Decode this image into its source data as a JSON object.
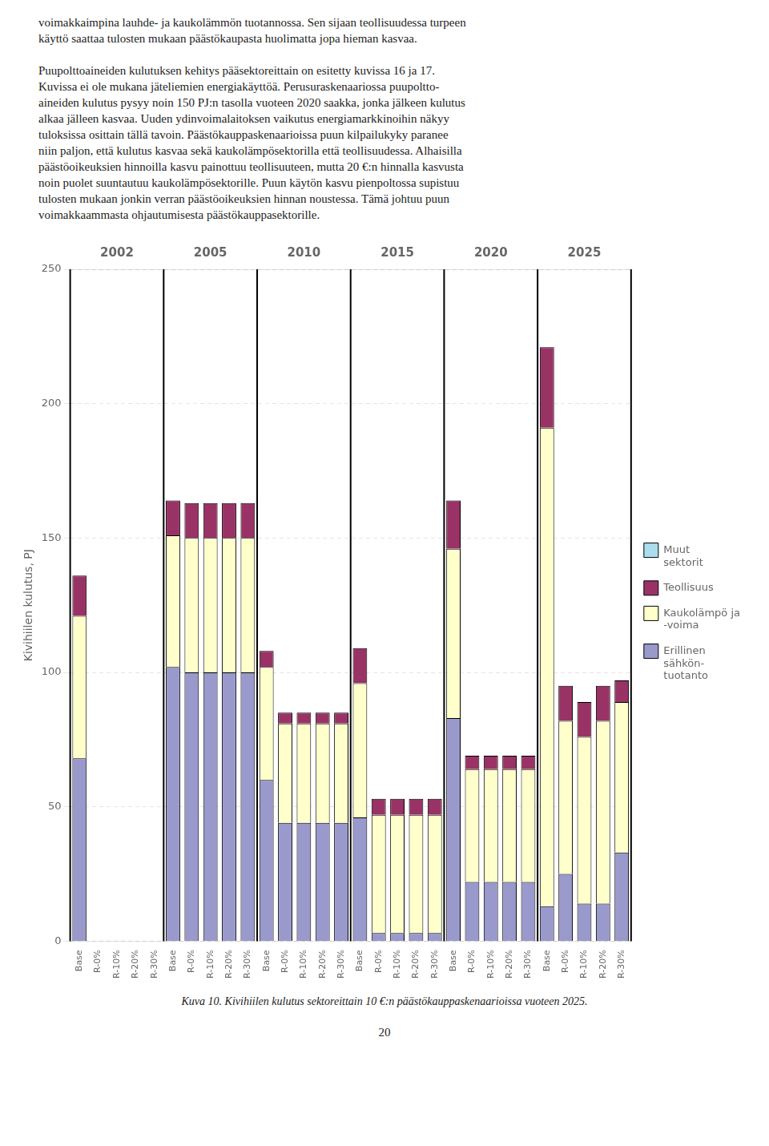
{
  "page_text_top": [
    [
      "voimakkaimpina lauhde- ja kaukolämmön tuotannossa. Sen sijaan teollisuudessa turpeen",
      "käyttö saattaa tulosten mukaan päästökaupasta huolimatta jopa hieman kasvaa."
    ],
    [
      "Puupolttoaineiden kulutuksen kehitys pääsektoreittain on esitetty kuvissa 16 ja 17.",
      "Kuvissa ei ole mukana jäteliemien energiakäyttöä. Perusuraskenaariossa puupoltto-",
      "aineiden kulutus pysyy noin 150 PJ:n tasolla vuoteen 2020 saakka, jonka jälkeen kulutus",
      "alkaa jälleen kasvaa. Uuden ydinvoimalaitoksen vaikutus energiamarkkinoihin näkyy",
      "tuloksissa osittain tällä tavoin. Päästökauppaskenaarioissa puun kilpailukyky paranee",
      "niin paljon, että kulutus kasvaa sekä kaukolämpösektorilla että teollisuudessa. Alhaisilla",
      "päästöoikeuksien hinnoilla kasvu painottuu teollisuuteen, mutta 20 €:n hinnalla kasvusta",
      "noin puolet suuntautuu kaukolämpösektorille. Puun käytön kasvu pienpoltossa supistuu",
      "tulosten mukaan jonkin verran päästöoikeuksien hinnan noustessa. Tämä johtuu puun",
      "voimakkaammasta ohjautumisesta päästökauppasektorille."
    ]
  ],
  "chart_data": {
    "type": "bar",
    "stacked": true,
    "ylabel": "Kivihiilen kulutus, PJ",
    "categories": [
      "Base",
      "R-0%",
      "R-10%",
      "R-20%",
      "R-30%",
      "Base",
      "R-0%",
      "R-10%",
      "R-20%",
      "R-30%",
      "Base",
      "R-0%",
      "R-10%",
      "R-20%",
      "R-30%",
      "Base",
      "R-0%",
      "R-10%",
      "R-20%",
      "R-30%",
      "Base",
      "R-0%",
      "R-10%",
      "R-20%",
      "R-30%",
      "Base",
      "R-0%",
      "R-10%",
      "R-20%",
      "R-30%"
    ],
    "group_labels": [
      "2002",
      "2005",
      "2010",
      "2015",
      "2020",
      "2025"
    ],
    "series": [
      {
        "name": "Erillinen\nsähkön-\ntuotanto",
        "color": "#9999CC",
        "values": [
          68,
          0,
          0,
          0,
          0,
          102,
          100,
          100,
          100,
          100,
          60,
          44,
          44,
          44,
          44,
          46,
          3,
          3,
          3,
          3,
          83,
          22,
          22,
          22,
          22,
          13,
          25,
          14,
          14,
          33
        ]
      },
      {
        "name": "Kaukolämpö ja\n-voima",
        "color": "#FFFFCC",
        "values": [
          53,
          0,
          0,
          0,
          0,
          49,
          50,
          50,
          50,
          50,
          42,
          37,
          37,
          37,
          37,
          50,
          44,
          44,
          44,
          44,
          63,
          42,
          42,
          42,
          42,
          178,
          57,
          62,
          68,
          56
        ]
      },
      {
        "name": "Teollisuus",
        "color": "#993366",
        "values": [
          15,
          0,
          0,
          0,
          0,
          13,
          13,
          13,
          13,
          13,
          6,
          4,
          4,
          4,
          4,
          13,
          6,
          6,
          6,
          6,
          18,
          5,
          5,
          5,
          5,
          30,
          13,
          13,
          13,
          8
        ]
      },
      {
        "name": "Muut\nsektorit",
        "color": "#AADDEE",
        "values": [
          0,
          0,
          0,
          0,
          0,
          0,
          0,
          0,
          0,
          0,
          0,
          0,
          0,
          0,
          0,
          0,
          0,
          0,
          0,
          0,
          0,
          0,
          0,
          0,
          0,
          0,
          0,
          0,
          0,
          0
        ]
      }
    ],
    "ylim": [
      0,
      250
    ],
    "yticks": [
      0,
      50,
      100,
      150,
      200,
      250
    ],
    "grid": true,
    "legend": "right"
  },
  "caption": "Kuva 10. Kivihiilen kulutus sektoreittain 10 €:n päästökauppaskenaarioissa vuoteen 2025.",
  "page_number": "20"
}
